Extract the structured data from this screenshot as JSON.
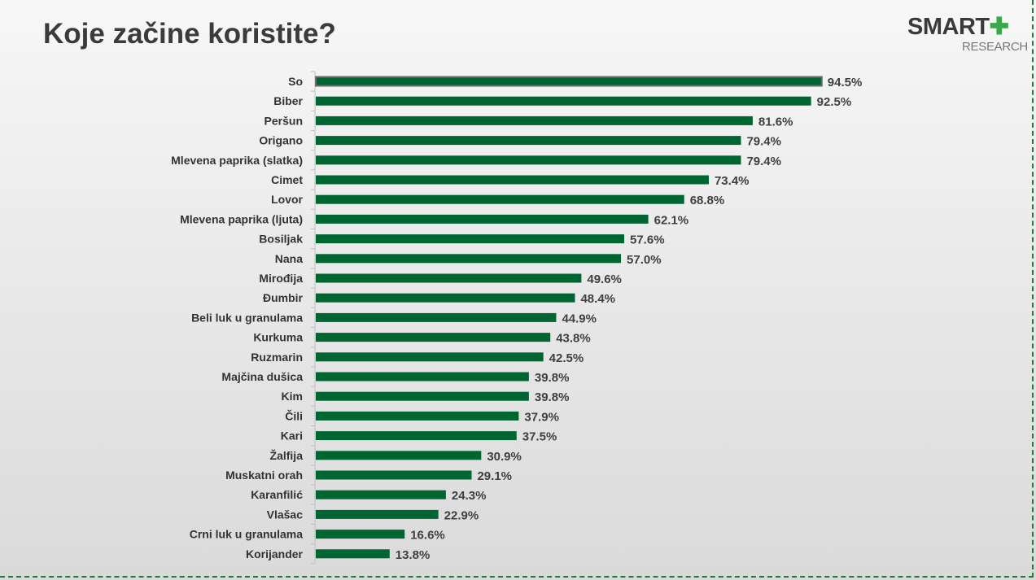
{
  "header": {
    "title": "Koje začine koristite?"
  },
  "logo": {
    "smart": "SMART",
    "plus": "✚",
    "research": "RESEARCH"
  },
  "colors": {
    "bar": "#006631",
    "highlight_border": "#6b6b6b",
    "label": "#333333",
    "value": "#3f3f3f"
  },
  "chart_data": {
    "type": "bar",
    "orientation": "horizontal",
    "title": "Koje začine koristite?",
    "xlim": [
      0,
      100
    ],
    "value_suffix": "%",
    "categories": [
      "So",
      "Biber",
      "Peršun",
      "Origano",
      "Mlevena paprika (slatka)",
      "Cimet",
      "Lovor",
      "Mlevena paprika (ljuta)",
      "Bosiljak",
      "Nana",
      "Mirođija",
      "Đumbir",
      "Beli luk u granulama",
      "Kurkuma",
      "Ruzmarin",
      "Majčina dušica",
      "Kim",
      "Čili",
      "Kari",
      "Žalfija",
      "Muskatni orah",
      "Karanfilić",
      "Vlašac",
      "Crni luk u granulama",
      "Korijander"
    ],
    "values": [
      94.5,
      92.5,
      81.6,
      79.4,
      79.4,
      73.4,
      68.8,
      62.1,
      57.6,
      57.0,
      49.6,
      48.4,
      44.9,
      43.8,
      42.5,
      39.8,
      39.8,
      37.9,
      37.5,
      30.9,
      29.1,
      24.3,
      22.9,
      16.6,
      13.8
    ],
    "labels": [
      "94.5%",
      "92.5%",
      "81.6%",
      "79.4%",
      "79.4%",
      "73.4%",
      "68.8%",
      "62.1%",
      "57.6%",
      "57.0%",
      "49.6%",
      "48.4%",
      "44.9%",
      "43.8%",
      "42.5%",
      "39.8%",
      "39.8%",
      "37.9%",
      "37.5%",
      "30.9%",
      "29.1%",
      "24.3%",
      "22.9%",
      "16.6%",
      "13.8%"
    ],
    "highlighted": [
      "So"
    ]
  }
}
